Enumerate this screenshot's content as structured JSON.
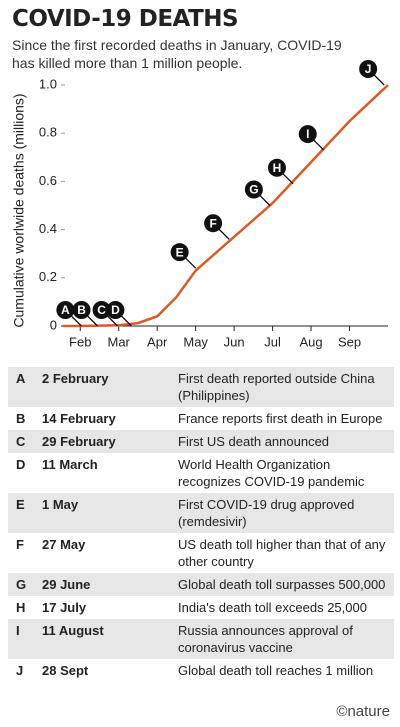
{
  "chart_data": {
    "type": "line",
    "title": "COVID-19 DEATHS",
    "subtitle": "Since the first recorded deaths in January, COVID-19 has killed more than 1 million people.",
    "y_label": "Cumulative worlwide deaths (millions)",
    "xlim": [
      0.5,
      9
    ],
    "xticks": [
      {
        "value": 1,
        "label": "Feb"
      },
      {
        "value": 2,
        "label": "Mar"
      },
      {
        "value": 3,
        "label": "Apr"
      },
      {
        "value": 4,
        "label": "May"
      },
      {
        "value": 5,
        "label": "Jun"
      },
      {
        "value": 6,
        "label": "Jul"
      },
      {
        "value": 7,
        "label": "Aug"
      },
      {
        "value": 8,
        "label": "Sep"
      }
    ],
    "ylim": [
      0,
      1
    ],
    "yticks": [
      0,
      0.2,
      0.4,
      0.6,
      0.8,
      {
        "value": 1,
        "label": "1.0"
      }
    ],
    "series": [
      {
        "color": "#d95a26",
        "x": [
          0.55,
          1,
          2,
          2.5,
          3,
          3.5,
          4,
          5,
          6,
          7,
          8,
          9
        ],
        "values": [
          0,
          0,
          0.003,
          0.012,
          0.04,
          0.12,
          0.23,
          0.37,
          0.51,
          0.68,
          0.85,
          1.0
        ]
      }
    ],
    "annotations": [
      {
        "label": "A",
        "x": 1.03,
        "y": 0
      },
      {
        "label": "B",
        "x": 1.45,
        "y": 0
      },
      {
        "label": "C",
        "x": 1.97,
        "y": 0
      },
      {
        "label": "D",
        "x": 2.33,
        "y": 0
      },
      {
        "label": "E",
        "x": 4.0,
        "y": 0.24
      },
      {
        "label": "F",
        "x": 4.87,
        "y": 0.36
      },
      {
        "label": "G",
        "x": 5.93,
        "y": 0.5
      },
      {
        "label": "H",
        "x": 6.53,
        "y": 0.59
      },
      {
        "label": "I",
        "x": 7.33,
        "y": 0.73
      },
      {
        "label": "J",
        "x": 8.9,
        "y": 1.0
      }
    ]
  },
  "table": {
    "rows": [
      [
        "A",
        "2 February",
        "First death reported outside China (Philippines)"
      ],
      [
        "B",
        "14 February",
        "France reports first death in Europe"
      ],
      [
        "C",
        "29 February",
        "First US death announced"
      ],
      [
        "D",
        "11 March",
        "World Health Organization recognizes COVID-19 pandemic"
      ],
      [
        "E",
        "1 May",
        "First COVID-19 drug approved (remdesivir)"
      ],
      [
        "F",
        "27 May",
        "US death toll higher than that of any other country"
      ],
      [
        "G",
        "29 June",
        "Global death toll surpasses 500,000"
      ],
      [
        "H",
        "17 July",
        "India's death toll exceeds 25,000"
      ],
      [
        "I",
        "11 August",
        "Russia announces approval of coronavirus vaccine"
      ],
      [
        "J",
        "28 Sept",
        "Global death toll reaches 1 million"
      ]
    ]
  },
  "footer": "©nature"
}
